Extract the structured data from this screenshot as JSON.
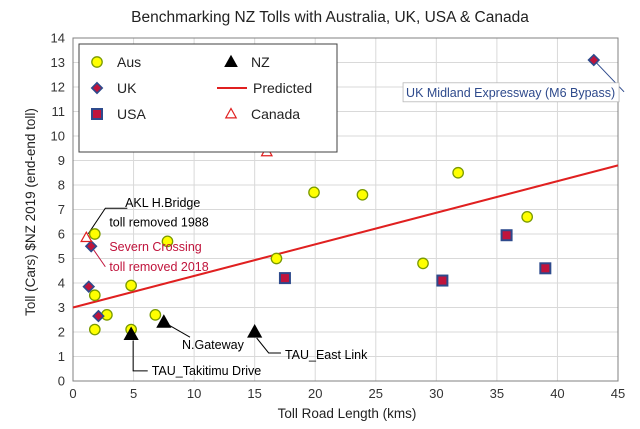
{
  "chart_data": {
    "type": "scatter",
    "title": "Benchmarking NZ Tolls with Australia, UK, USA & Canada",
    "xlabel": "Toll Road Length (kms)",
    "ylabel": "Toll (Cars) $NZ 2019  (end-end toll)",
    "xlim": [
      0,
      45
    ],
    "ylim": [
      0,
      14
    ],
    "xticks": [
      0,
      5,
      10,
      15,
      20,
      25,
      30,
      35,
      40,
      45
    ],
    "yticks": [
      0,
      1,
      2,
      3,
      4,
      5,
      6,
      7,
      8,
      9,
      10,
      11,
      12,
      13,
      14
    ],
    "grid": true,
    "legend_position": "top-left",
    "colors": {
      "aus_fill": "#ffff00",
      "aus_stroke": "#7a9a00",
      "uk_fill": "#c0143c",
      "uk_stroke": "#2e4a8c",
      "usa_fill": "#c0143c",
      "usa_stroke": "#2e4a8c",
      "nz": "#000000",
      "predicted": "#e02020",
      "canada": "#e02020"
    },
    "series": [
      {
        "name": "Aus",
        "marker": "circle",
        "points": [
          {
            "x": 1.8,
            "y": 2.1
          },
          {
            "x": 1.8,
            "y": 3.5
          },
          {
            "x": 1.8,
            "y": 6.0
          },
          {
            "x": 2.8,
            "y": 2.7
          },
          {
            "x": 4.8,
            "y": 2.1
          },
          {
            "x": 4.8,
            "y": 3.9
          },
          {
            "x": 6.8,
            "y": 2.7
          },
          {
            "x": 7.8,
            "y": 5.7
          },
          {
            "x": 16.8,
            "y": 5.0
          },
          {
            "x": 19.9,
            "y": 7.7
          },
          {
            "x": 20.8,
            "y": 9.9
          },
          {
            "x": 23.9,
            "y": 7.6
          },
          {
            "x": 28.9,
            "y": 4.8
          },
          {
            "x": 31.8,
            "y": 8.5
          },
          {
            "x": 37.5,
            "y": 6.7
          }
        ]
      },
      {
        "name": "UK",
        "marker": "diamond",
        "points": [
          {
            "x": 1.3,
            "y": 3.85
          },
          {
            "x": 1.5,
            "y": 5.5
          },
          {
            "x": 2.1,
            "y": 2.65
          },
          {
            "x": 43.0,
            "y": 13.1
          }
        ]
      },
      {
        "name": "USA",
        "marker": "square",
        "points": [
          {
            "x": 17.5,
            "y": 4.2
          },
          {
            "x": 30.5,
            "y": 4.1
          },
          {
            "x": 35.8,
            "y": 5.95
          },
          {
            "x": 39.0,
            "y": 4.6
          }
        ]
      },
      {
        "name": "NZ",
        "marker": "triangle",
        "points": [
          {
            "x": 4.8,
            "y": 1.9
          },
          {
            "x": 7.5,
            "y": 2.4
          },
          {
            "x": 15.0,
            "y": 2.0
          }
        ]
      },
      {
        "name": "Predicted",
        "marker": "line",
        "points": [
          {
            "x": 0,
            "y": 3.0
          },
          {
            "x": 45,
            "y": 8.8
          }
        ]
      },
      {
        "name": "Canada",
        "marker": "triangle-open",
        "points": [
          {
            "x": 16.0,
            "y": 9.35
          },
          {
            "x": 1.1,
            "y": 5.85
          }
        ]
      }
    ],
    "annotations": [
      {
        "id": "uk-midland",
        "text": "UK Midland Expressway (M6 Bypass)",
        "x": 27.5,
        "y": 11.6,
        "color": "#2e4a8c",
        "boxed": true,
        "target": {
          "x": 43.0,
          "y": 13.1
        }
      },
      {
        "id": "akl-line1",
        "text": "AKL H.Bridge",
        "x": 4.3,
        "y": 7.1,
        "color": "#000000"
      },
      {
        "id": "akl-line2",
        "text": "toll removed 1988",
        "x": 3.0,
        "y": 6.3,
        "color": "#000000",
        "target": {
          "x": 1.1,
          "y": 5.85
        }
      },
      {
        "id": "severn-line1",
        "text": "Severn Crossing",
        "x": 3.0,
        "y": 5.3,
        "color": "#c0143c"
      },
      {
        "id": "severn-line2",
        "text": "toll removed 2018",
        "x": 3.0,
        "y": 4.5,
        "color": "#c0143c",
        "target": {
          "x": 1.5,
          "y": 5.5
        }
      },
      {
        "id": "ngateway",
        "text": "N.Gateway",
        "x": 9.0,
        "y": 1.3,
        "color": "#000000",
        "target": {
          "x": 7.5,
          "y": 2.4
        }
      },
      {
        "id": "tau-east",
        "text": "TAU_East Link",
        "x": 17.5,
        "y": 0.9,
        "color": "#000000",
        "target": {
          "x": 15.0,
          "y": 2.0
        }
      },
      {
        "id": "tau-takitimu",
        "text": "TAU_Takitimu  Drive",
        "x": 6.5,
        "y": 0.25,
        "color": "#000000",
        "target": {
          "x": 4.8,
          "y": 1.9
        }
      }
    ]
  }
}
